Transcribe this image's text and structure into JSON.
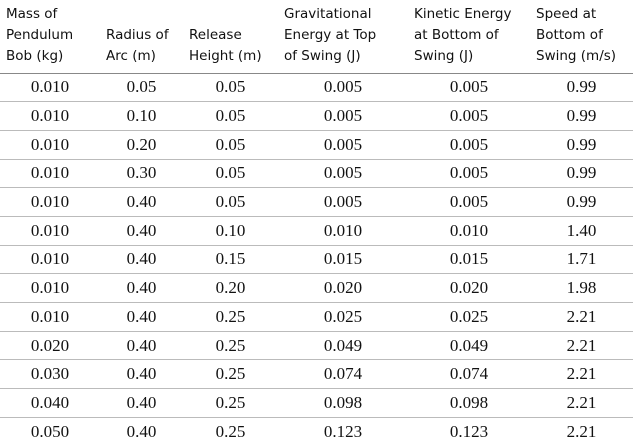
{
  "table": {
    "header": [
      [
        "Mass of",
        "Pendulum",
        "Bob (kg)"
      ],
      [
        "Radius of",
        "Arc (m)"
      ],
      [
        "Release",
        "Height (m)"
      ],
      [
        "Gravitational",
        "Energy at Top",
        "of Swing (J)"
      ],
      [
        "Kinetic Energy",
        "at Bottom of",
        "Swing (J)"
      ],
      [
        "Speed at",
        "Bottom of",
        "Swing (m/s)"
      ]
    ],
    "rows": [
      [
        "0.010",
        "0.05",
        "0.05",
        "0.005",
        "0.005",
        "0.99"
      ],
      [
        "0.010",
        "0.10",
        "0.05",
        "0.005",
        "0.005",
        "0.99"
      ],
      [
        "0.010",
        "0.20",
        "0.05",
        "0.005",
        "0.005",
        "0.99"
      ],
      [
        "0.010",
        "0.30",
        "0.05",
        "0.005",
        "0.005",
        "0.99"
      ],
      [
        "0.010",
        "0.40",
        "0.05",
        "0.005",
        "0.005",
        "0.99"
      ],
      [
        "0.010",
        "0.40",
        "0.10",
        "0.010",
        "0.010",
        "1.40"
      ],
      [
        "0.010",
        "0.40",
        "0.15",
        "0.015",
        "0.015",
        "1.71"
      ],
      [
        "0.010",
        "0.40",
        "0.20",
        "0.020",
        "0.020",
        "1.98"
      ],
      [
        "0.010",
        "0.40",
        "0.25",
        "0.025",
        "0.025",
        "2.21"
      ],
      [
        "0.020",
        "0.40",
        "0.25",
        "0.049",
        "0.049",
        "2.21"
      ],
      [
        "0.030",
        "0.40",
        "0.25",
        "0.074",
        "0.074",
        "2.21"
      ],
      [
        "0.040",
        "0.40",
        "0.25",
        "0.098",
        "0.098",
        "2.21"
      ],
      [
        "0.050",
        "0.40",
        "0.25",
        "0.123",
        "0.123",
        "2.21"
      ]
    ]
  }
}
